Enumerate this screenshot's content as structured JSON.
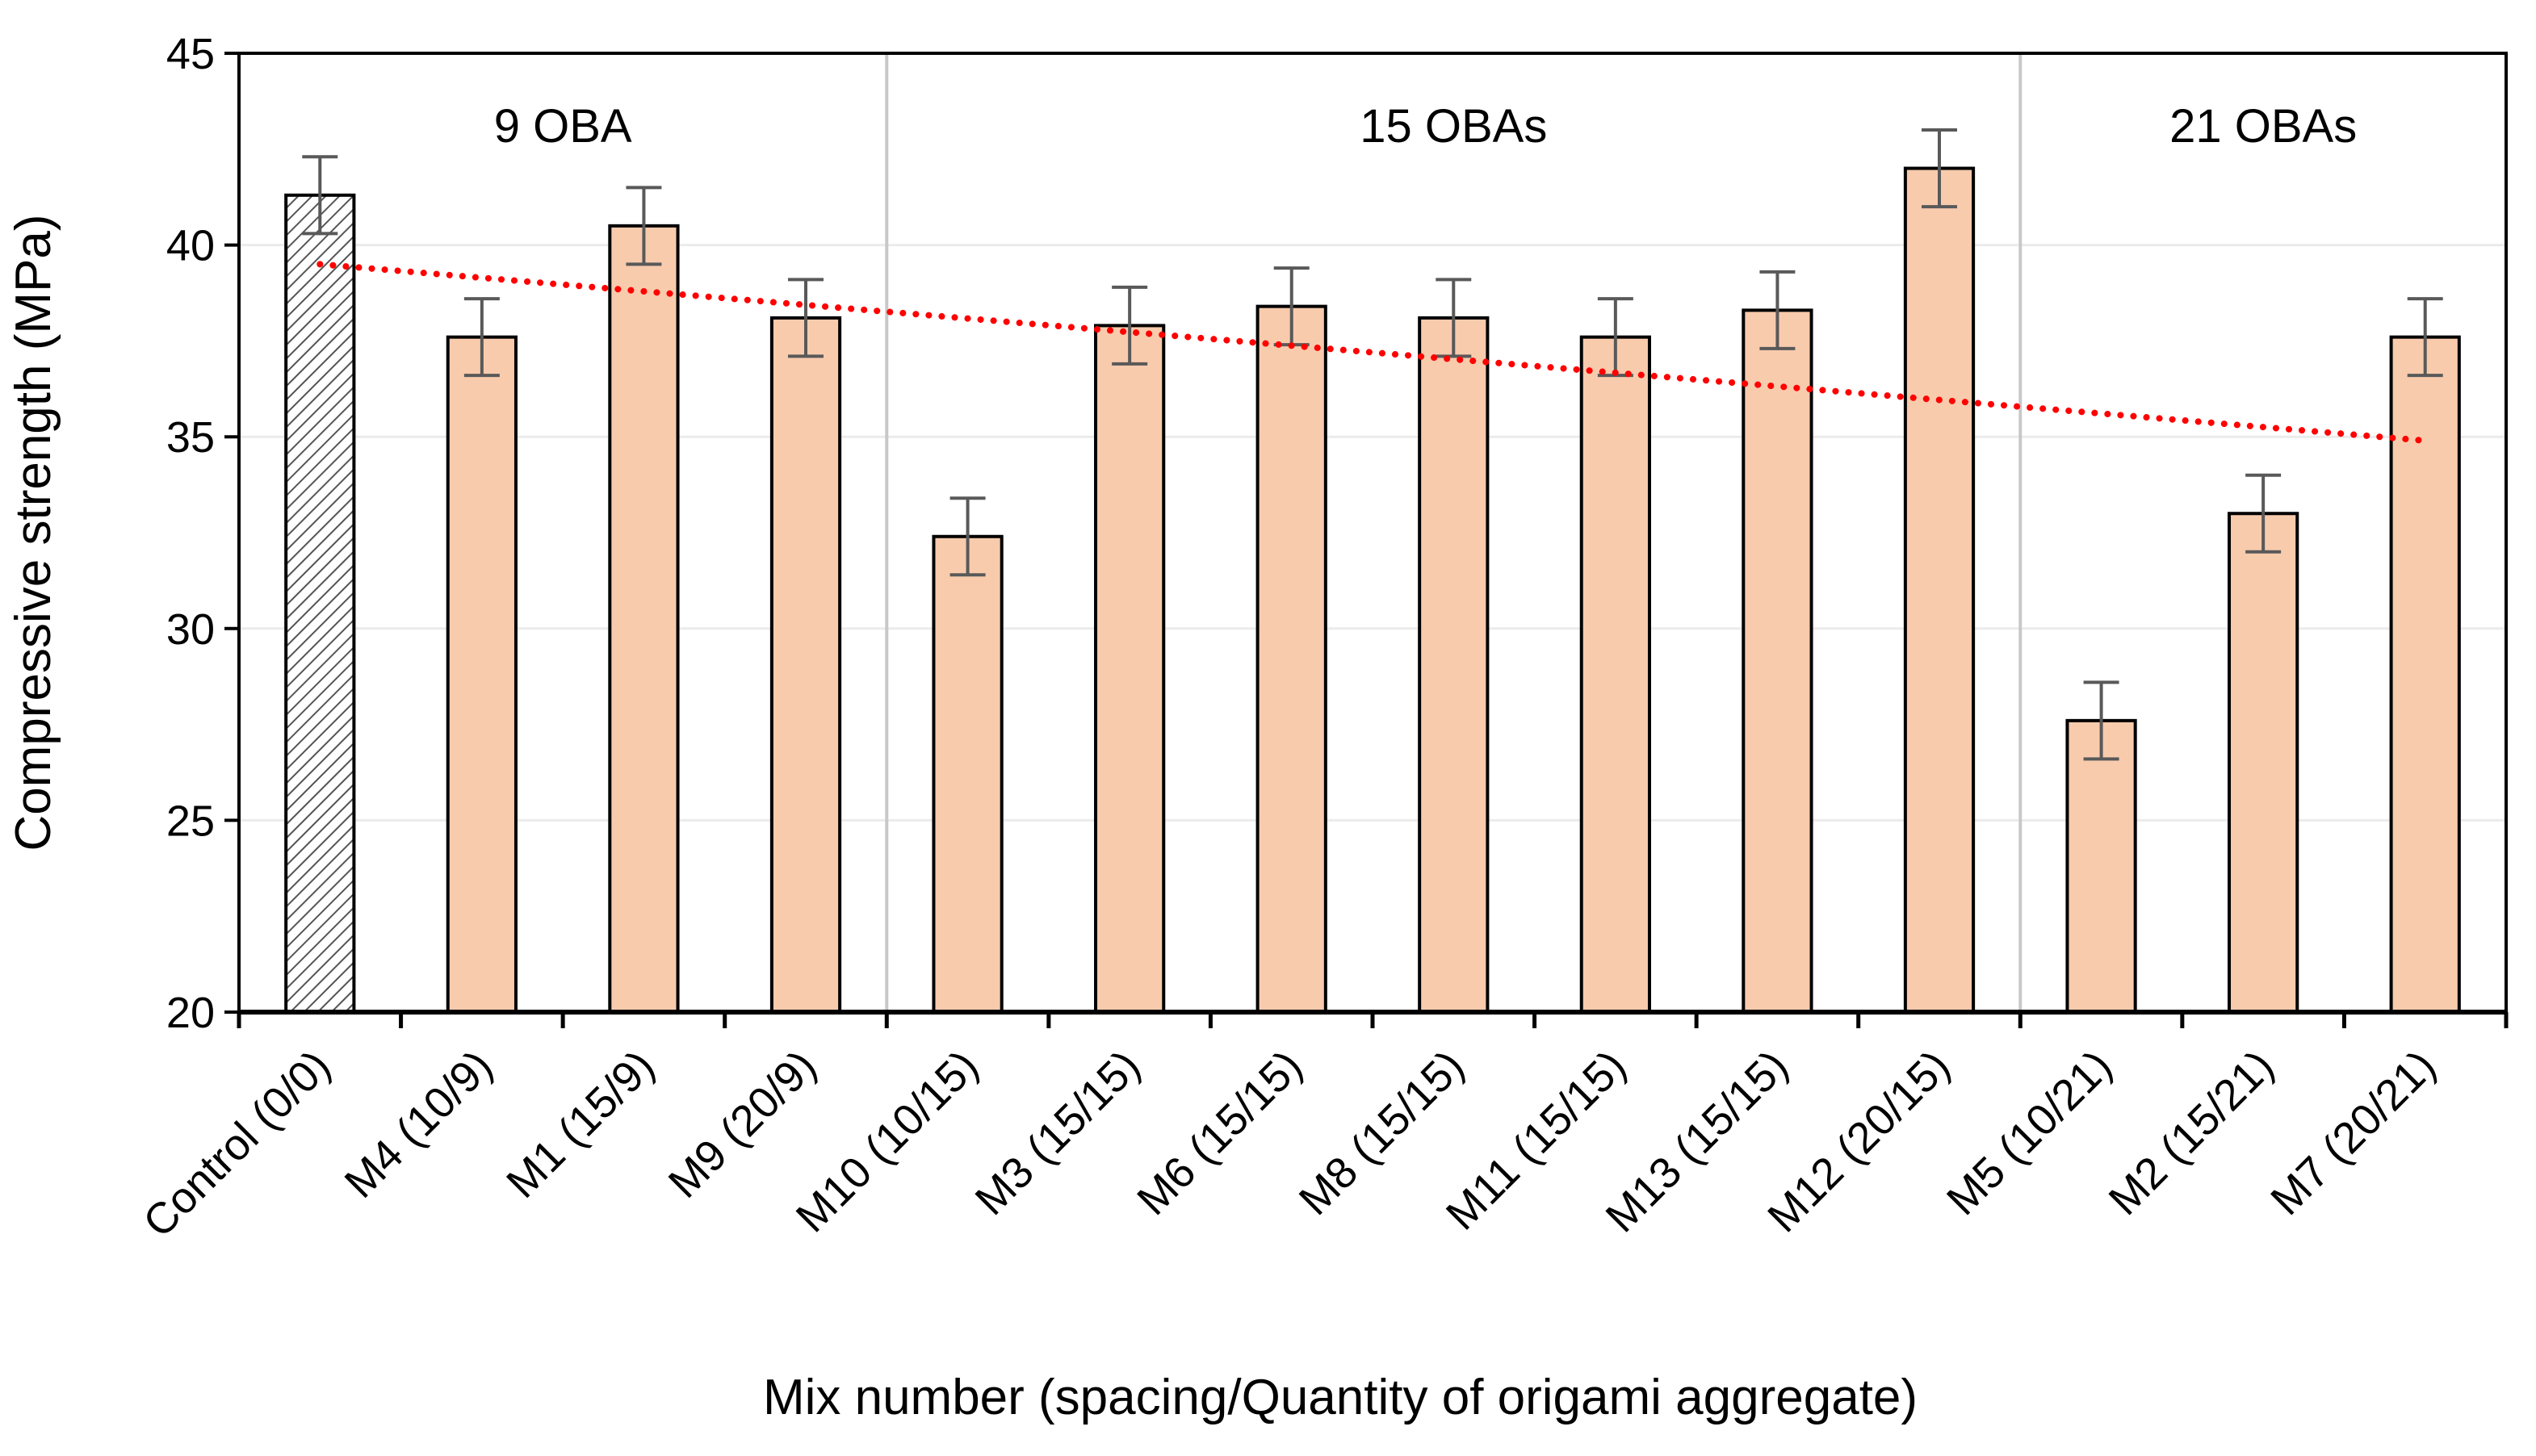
{
  "chart_data": {
    "type": "bar",
    "xlabel": "Mix number (spacing/Quantity of origami aggregate)",
    "ylabel": "Compressive strength (MPa)",
    "ylim": [
      20,
      45
    ],
    "yticks": [
      20,
      25,
      30,
      35,
      40,
      45
    ],
    "grid": true,
    "categories": [
      "Control (0/0)",
      "M4 (10/9)",
      "M1 (15/9)",
      "M9 (20/9)",
      "M10 (10/15)",
      "M3 (15/15)",
      "M6 (15/15)",
      "M8 (15/15)",
      "M11 (15/15)",
      "M13 (15/15)",
      "M12 (20/15)",
      "M5 (10/21)",
      "M2 (15/21)",
      "M7 (20/21)"
    ],
    "values": [
      41.3,
      37.6,
      40.5,
      38.1,
      32.4,
      37.9,
      38.4,
      38.1,
      37.6,
      38.3,
      42.0,
      27.6,
      33.0,
      37.6
    ],
    "errors": [
      1.0,
      1.0,
      1.0,
      1.0,
      1.0,
      1.0,
      1.0,
      1.0,
      1.0,
      1.0,
      1.0,
      1.0,
      1.0,
      1.0
    ],
    "bar_styles": [
      "hatched",
      "solid",
      "solid",
      "solid",
      "solid",
      "solid",
      "solid",
      "solid",
      "solid",
      "solid",
      "solid",
      "solid",
      "solid",
      "solid"
    ],
    "groups": [
      {
        "label": "9 OBA",
        "start": 0,
        "end": 3
      },
      {
        "label": "15 OBAs",
        "start": 4,
        "end": 10
      },
      {
        "label": "21 OBAs",
        "start": 11,
        "end": 13
      }
    ],
    "trendline": {
      "type": "linear",
      "start": 39.5,
      "end": 34.9,
      "style": "dotted"
    },
    "colors": {
      "bar_fill": "#F8CBAD",
      "bar_edge": "#000000",
      "hatch": "#555555",
      "error_bar": "#595959",
      "trendline": "#FF0000",
      "grid": "#EBEBEB",
      "separator": "#C8C8C8"
    }
  }
}
